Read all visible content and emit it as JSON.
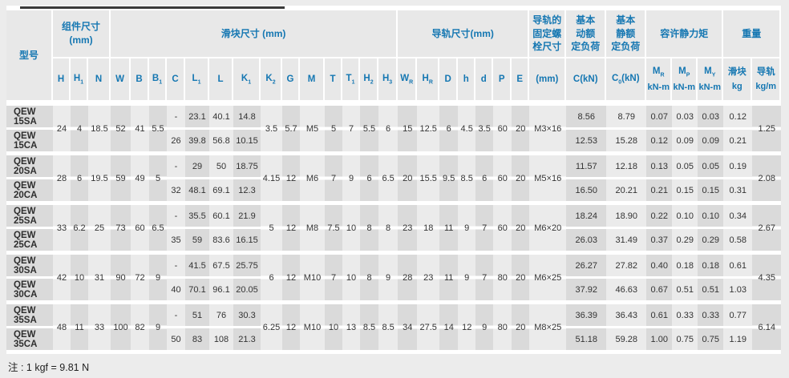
{
  "note": "注 : 1 kgf = 9.81 N",
  "colors": {
    "page_bg": "#ececec",
    "header_bg": "#e8e8e8",
    "accent_blue": "#1577b2",
    "stripe_dark": "#dadada",
    "stripe_light": "#ebebeb",
    "separator_white": "#ffffff",
    "top_rule": "#3a3a3a",
    "text": "#333333"
  },
  "table": {
    "widths": [
      58,
      22,
      22,
      28,
      25,
      23,
      22,
      23,
      30,
      30,
      34,
      27,
      22,
      31,
      22,
      22,
      23,
      24,
      24,
      28,
      23,
      22,
      22,
      23,
      22,
      46,
      50,
      50,
      32,
      32,
      32,
      36,
      36
    ],
    "header": {
      "groups": [
        {
          "label": "型号",
          "cols": 1,
          "rows": 2
        },
        {
          "label": "组件尺寸\n(mm)",
          "cols": 3
        },
        {
          "label": "滑块尺寸 (mm)",
          "cols": 14
        },
        {
          "label": "导轨尺寸(mm)",
          "cols": 7
        },
        {
          "label": "导轨的\n固定螺\n栓尺寸",
          "cols": 1
        },
        {
          "label": "基本\n动额\n定负荷",
          "cols": 1
        },
        {
          "label": "基本\n静额\n定负荷",
          "cols": 1
        },
        {
          "label": "容许静力矩",
          "cols": 3
        },
        {
          "label": "重量",
          "cols": 2
        }
      ]
    },
    "columns": [
      {
        "key": "H",
        "pre": "H"
      },
      {
        "key": "H1",
        "pre": "H",
        "sub": "1"
      },
      {
        "key": "N",
        "pre": "N"
      },
      {
        "key": "W",
        "pre": "W"
      },
      {
        "key": "B",
        "pre": "B"
      },
      {
        "key": "B1",
        "pre": "B",
        "sub": "1"
      },
      {
        "key": "C",
        "pre": "C"
      },
      {
        "key": "L1",
        "pre": "L",
        "sub": "1"
      },
      {
        "key": "L",
        "pre": "L"
      },
      {
        "key": "K1",
        "pre": "K",
        "sub": "1"
      },
      {
        "key": "K2",
        "pre": "K",
        "sub": "2"
      },
      {
        "key": "G",
        "pre": "G"
      },
      {
        "key": "M",
        "pre": "M"
      },
      {
        "key": "T",
        "pre": "T"
      },
      {
        "key": "T1",
        "pre": "T",
        "sub": "1"
      },
      {
        "key": "H2",
        "pre": "H",
        "sub": "2"
      },
      {
        "key": "H3",
        "pre": "H",
        "sub": "3"
      },
      {
        "key": "WR",
        "pre": "W",
        "sub": "R"
      },
      {
        "key": "HR",
        "pre": "H",
        "sub": "R"
      },
      {
        "key": "D",
        "pre": "D"
      },
      {
        "key": "h",
        "pre": "h"
      },
      {
        "key": "d",
        "pre": "d"
      },
      {
        "key": "P",
        "pre": "P"
      },
      {
        "key": "E",
        "pre": "E"
      },
      {
        "key": "bolt",
        "pre": "(mm)"
      },
      {
        "key": "C_kN",
        "pre": "C(kN)"
      },
      {
        "key": "C0_kN",
        "pre": "C",
        "sub": "0",
        "post": "(kN)"
      },
      {
        "key": "MR",
        "pre": "M",
        "sub": "R",
        "line2": "kN-m"
      },
      {
        "key": "MP",
        "pre": "M",
        "sub": "P",
        "line2": "kN-m"
      },
      {
        "key": "MY",
        "pre": "M",
        "sub": "Y",
        "line2": "kN-m"
      },
      {
        "key": "Wb",
        "pre": "滑块",
        "line2": "kg"
      },
      {
        "key": "Wr",
        "pre": "导轨",
        "line2": "kg/m"
      }
    ],
    "body": [
      {
        "shared": {
          "H": "24",
          "H1": "4",
          "N": "18.5",
          "W": "52",
          "B": "41",
          "B1": "5.5",
          "K2": "3.5",
          "G": "5.7",
          "M": "M5",
          "T": "5",
          "T1": "7",
          "H2": "5.5",
          "H3": "6",
          "WR": "15",
          "HR": "12.5",
          "D": "6",
          "h": "4.5",
          "d": "3.5",
          "P": "60",
          "E": "20",
          "bolt": "M3×16",
          "Wr": "1.25"
        },
        "rows": [
          {
            "model": "QEW 15SA",
            "C": "-",
            "L1": "23.1",
            "L": "40.1",
            "K1": "14.8",
            "C_kN": "8.56",
            "C0_kN": "8.79",
            "MR": "0.07",
            "MP": "0.03",
            "MY": "0.03",
            "Wb": "0.12"
          },
          {
            "model": "QEW 15CA",
            "C": "26",
            "L1": "39.8",
            "L": "56.8",
            "K1": "10.15",
            "C_kN": "12.53",
            "C0_kN": "15.28",
            "MR": "0.12",
            "MP": "0.09",
            "MY": "0.09",
            "Wb": "0.21"
          }
        ]
      },
      {
        "shared": {
          "H": "28",
          "H1": "6",
          "N": "19.5",
          "W": "59",
          "B": "49",
          "B1": "5",
          "K2": "4.15",
          "G": "12",
          "M": "M6",
          "T": "7",
          "T1": "9",
          "H2": "6",
          "H3": "6.5",
          "WR": "20",
          "HR": "15.5",
          "D": "9.5",
          "h": "8.5",
          "d": "6",
          "P": "60",
          "E": "20",
          "bolt": "M5×16",
          "Wr": "2.08"
        },
        "rows": [
          {
            "model": "QEW 20SA",
            "C": "-",
            "L1": "29",
            "L": "50",
            "K1": "18.75",
            "C_kN": "11.57",
            "C0_kN": "12.18",
            "MR": "0.13",
            "MP": "0.05",
            "MY": "0.05",
            "Wb": "0.19"
          },
          {
            "model": "QEW 20CA",
            "C": "32",
            "L1": "48.1",
            "L": "69.1",
            "K1": "12.3",
            "C_kN": "16.50",
            "C0_kN": "20.21",
            "MR": "0.21",
            "MP": "0.15",
            "MY": "0.15",
            "Wb": "0.31"
          }
        ]
      },
      {
        "shared": {
          "H": "33",
          "H1": "6.2",
          "N": "25",
          "W": "73",
          "B": "60",
          "B1": "6.5",
          "K2": "5",
          "G": "12",
          "M": "M8",
          "T": "7.5",
          "T1": "10",
          "H2": "8",
          "H3": "8",
          "WR": "23",
          "HR": "18",
          "D": "11",
          "h": "9",
          "d": "7",
          "P": "60",
          "E": "20",
          "bolt": "M6×20",
          "Wr": "2.67"
        },
        "rows": [
          {
            "model": "QEW 25SA",
            "C": "-",
            "L1": "35.5",
            "L": "60.1",
            "K1": "21.9",
            "C_kN": "18.24",
            "C0_kN": "18.90",
            "MR": "0.22",
            "MP": "0.10",
            "MY": "0.10",
            "Wb": "0.34"
          },
          {
            "model": "QEW 25CA",
            "C": "35",
            "L1": "59",
            "L": "83.6",
            "K1": "16.15",
            "C_kN": "26.03",
            "C0_kN": "31.49",
            "MR": "0.37",
            "MP": "0.29",
            "MY": "0.29",
            "Wb": "0.58"
          }
        ]
      },
      {
        "shared": {
          "H": "42",
          "H1": "10",
          "N": "31",
          "W": "90",
          "B": "72",
          "B1": "9",
          "K2": "6",
          "G": "12",
          "M": "M10",
          "T": "7",
          "T1": "10",
          "H2": "8",
          "H3": "9",
          "WR": "28",
          "HR": "23",
          "D": "11",
          "h": "9",
          "d": "7",
          "P": "80",
          "E": "20",
          "bolt": "M6×25",
          "Wr": "4.35"
        },
        "rows": [
          {
            "model": "QEW 30SA",
            "C": "-",
            "L1": "41.5",
            "L": "67.5",
            "K1": "25.75",
            "C_kN": "26.27",
            "C0_kN": "27.82",
            "MR": "0.40",
            "MP": "0.18",
            "MY": "0.18",
            "Wb": "0.61"
          },
          {
            "model": "QEW 30CA",
            "C": "40",
            "L1": "70.1",
            "L": "96.1",
            "K1": "20.05",
            "C_kN": "37.92",
            "C0_kN": "46.63",
            "MR": "0.67",
            "MP": "0.51",
            "MY": "0.51",
            "Wb": "1.03"
          }
        ]
      },
      {
        "shared": {
          "H": "48",
          "H1": "11",
          "N": "33",
          "W": "100",
          "B": "82",
          "B1": "9",
          "K2": "6.25",
          "G": "12",
          "M": "M10",
          "T": "10",
          "T1": "13",
          "H2": "8.5",
          "H3": "8.5",
          "WR": "34",
          "HR": "27.5",
          "D": "14",
          "h": "12",
          "d": "9",
          "P": "80",
          "E": "20",
          "bolt": "M8×25",
          "Wr": "6.14"
        },
        "rows": [
          {
            "model": "QEW 35SA",
            "C": "-",
            "L1": "51",
            "L": "76",
            "K1": "30.3",
            "C_kN": "36.39",
            "C0_kN": "36.43",
            "MR": "0.61",
            "MP": "0.33",
            "MY": "0.33",
            "Wb": "0.77"
          },
          {
            "model": "QEW 35CA",
            "C": "50",
            "L1": "83",
            "L": "108",
            "K1": "21.3",
            "C_kN": "51.18",
            "C0_kN": "59.28",
            "MR": "1.00",
            "MP": "0.75",
            "MY": "0.75",
            "Wb": "1.19"
          }
        ]
      }
    ]
  }
}
